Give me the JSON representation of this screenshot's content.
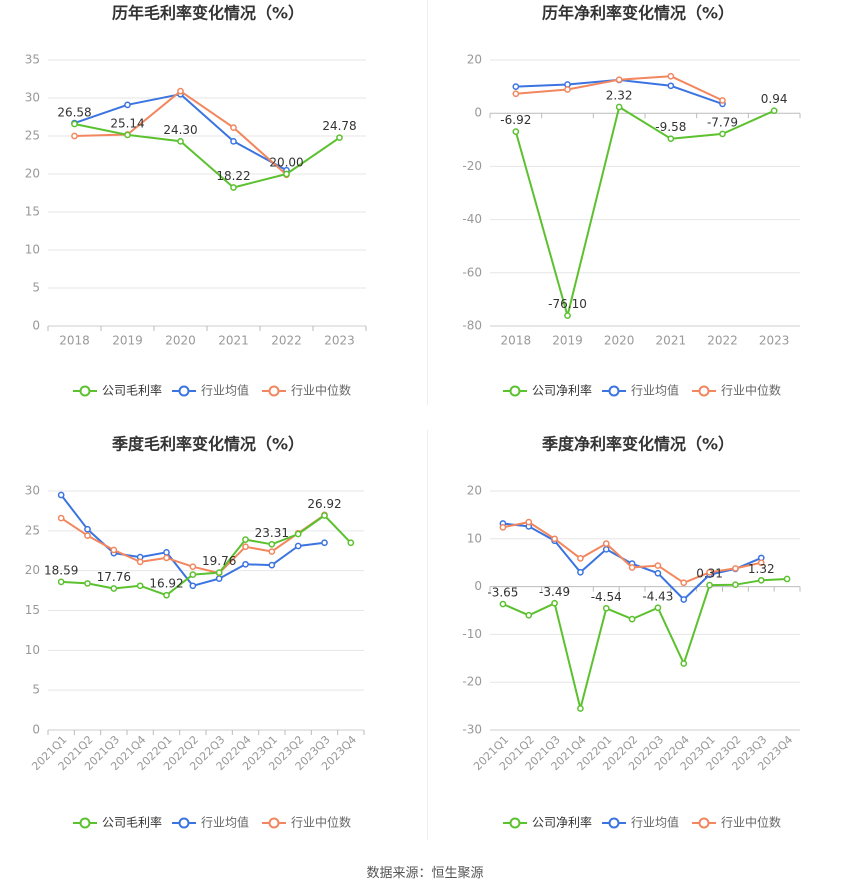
{
  "source": "数据来源：恒生聚源",
  "colors": {
    "company": "#5cc12f",
    "industry_avg": "#3b74e0",
    "industry_median": "#f2865e",
    "grid": "#e6e6e6",
    "axis_text": "#999999",
    "title_text": "#333333",
    "value_label": "#333333"
  },
  "legend_labels": {
    "gross": [
      "公司毛利率",
      "行业均值",
      "行业中位数"
    ],
    "net": [
      "公司净利率",
      "行业均值",
      "行业中位数"
    ]
  },
  "chart_data": [
    {
      "type": "line",
      "title": "历年毛利率变化情况（%）",
      "categories": [
        "2018",
        "2019",
        "2020",
        "2021",
        "2022",
        "2023"
      ],
      "ylim": [
        0,
        35
      ],
      "yticks": [
        0,
        5,
        10,
        15,
        20,
        25,
        30,
        35
      ],
      "x_label_rotate": false,
      "grid": true,
      "legend": "bottom",
      "series": [
        {
          "name": "公司毛利率",
          "values": [
            26.58,
            25.14,
            24.3,
            18.22,
            20.0,
            24.78
          ],
          "labels": [
            "26.58",
            "25.14",
            "24.30",
            "18.22",
            "20.00",
            "24.78"
          ]
        },
        {
          "name": "行业均值",
          "values": [
            26.7,
            29.1,
            30.5,
            24.3,
            20.5,
            null
          ]
        },
        {
          "name": "行业中位数",
          "values": [
            25.0,
            25.2,
            30.9,
            26.1,
            19.9,
            null
          ]
        }
      ]
    },
    {
      "type": "line",
      "title": "历年净利率变化情况（%）",
      "categories": [
        "2018",
        "2019",
        "2020",
        "2021",
        "2022",
        "2023"
      ],
      "ylim": [
        -80,
        20
      ],
      "yticks": [
        -80,
        -60,
        -40,
        -20,
        0,
        20
      ],
      "x_label_rotate": false,
      "grid": true,
      "legend": "bottom",
      "series": [
        {
          "name": "公司净利率",
          "values": [
            -6.92,
            -76.1,
            2.32,
            -9.58,
            -7.79,
            0.94
          ],
          "labels": [
            "-6.92",
            "-76.10",
            "2.32",
            "-9.58",
            "-7.79",
            "0.94"
          ]
        },
        {
          "name": "行业均值",
          "values": [
            10.0,
            10.8,
            12.5,
            10.3,
            3.5,
            null
          ]
        },
        {
          "name": "行业中位数",
          "values": [
            7.3,
            8.9,
            12.6,
            13.9,
            4.8,
            null
          ]
        }
      ]
    },
    {
      "type": "line",
      "title": "季度毛利率变化情况（%）",
      "categories": [
        "2021Q1",
        "2021Q2",
        "2021Q3",
        "2021Q4",
        "2022Q1",
        "2022Q2",
        "2022Q3",
        "2022Q4",
        "2023Q1",
        "2023Q2",
        "2023Q3",
        "2023Q4"
      ],
      "ylim": [
        0,
        30
      ],
      "yticks": [
        0,
        5,
        10,
        15,
        20,
        25,
        30
      ],
      "x_label_rotate": true,
      "grid": true,
      "legend": "bottom",
      "series": [
        {
          "name": "公司毛利率",
          "values": [
            18.59,
            18.4,
            17.76,
            18.1,
            16.92,
            19.5,
            19.76,
            23.9,
            23.31,
            24.6,
            26.92,
            23.5
          ],
          "labels": [
            "18.59",
            "",
            "17.76",
            "",
            "16.92",
            "",
            "19.76",
            "",
            "23.31",
            "",
            "26.92",
            ""
          ]
        },
        {
          "name": "行业均值",
          "values": [
            29.5,
            25.2,
            22.2,
            21.7,
            22.3,
            18.1,
            19.0,
            20.8,
            20.7,
            23.1,
            23.5,
            null
          ]
        },
        {
          "name": "行业中位数",
          "values": [
            26.6,
            24.4,
            22.6,
            21.1,
            21.6,
            20.5,
            19.7,
            23.0,
            22.4,
            24.7,
            27.0,
            null
          ]
        }
      ]
    },
    {
      "type": "line",
      "title": "季度净利率变化情况（%）",
      "categories": [
        "2021Q1",
        "2021Q2",
        "2021Q3",
        "2021Q4",
        "2022Q1",
        "2022Q2",
        "2022Q3",
        "2022Q4",
        "2023Q1",
        "2023Q2",
        "2023Q3",
        "2023Q4"
      ],
      "ylim": [
        -30,
        20
      ],
      "yticks": [
        -30,
        -20,
        -10,
        0,
        10,
        20
      ],
      "x_label_rotate": true,
      "grid": true,
      "legend": "bottom",
      "series": [
        {
          "name": "公司净利率",
          "values": [
            -3.65,
            -6.0,
            -3.49,
            -25.5,
            -4.54,
            -6.8,
            -4.43,
            -16.1,
            0.31,
            0.4,
            1.32,
            1.6
          ],
          "labels": [
            "-3.65",
            "",
            "-3.49",
            "",
            "-4.54",
            "",
            "-4.43",
            "",
            "0.31",
            "",
            "1.32",
            ""
          ]
        },
        {
          "name": "行业均值",
          "values": [
            13.2,
            12.6,
            9.6,
            3.0,
            7.8,
            4.8,
            2.8,
            -2.7,
            2.5,
            3.7,
            6.0,
            null
          ]
        },
        {
          "name": "行业中位数",
          "values": [
            12.4,
            13.5,
            10.0,
            5.9,
            9.0,
            4.0,
            4.4,
            0.8,
            3.0,
            3.8,
            5.0,
            null
          ]
        }
      ]
    }
  ]
}
